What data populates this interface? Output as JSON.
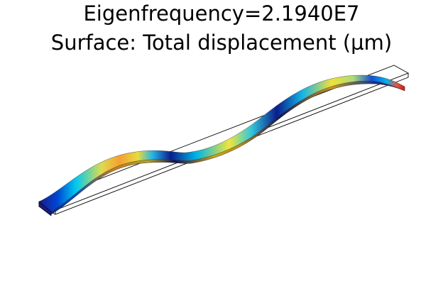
{
  "title": {
    "line1": "Eigenfrequency=2.1940E7",
    "line2": "Surface: Total displacement (µm)"
  },
  "plot": {
    "type": "3d-surface-mode-shape",
    "quantity": "Total displacement",
    "colormap": "rainbow",
    "colormap_colors": [
      "#0a0a8c",
      "#0064ff",
      "#00d2ff",
      "#f0e640",
      "#f5a028",
      "#c81e14"
    ],
    "undeformed_outline": true
  }
}
